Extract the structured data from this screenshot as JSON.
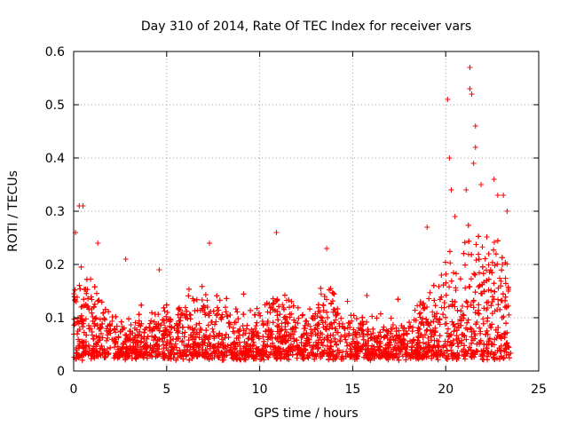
{
  "chart_data": {
    "type": "scatter",
    "title": "Day 310 of 2014, Rate Of TEC Index for receiver vars",
    "xlabel": "GPS time / hours",
    "ylabel": "ROTI / TECUs",
    "xlim": [
      0,
      25
    ],
    "ylim": [
      0,
      0.6
    ],
    "xticks": [
      "0",
      "5",
      "10",
      "15",
      "20",
      "25"
    ],
    "yticks": [
      "0",
      "0.1",
      "0.2",
      "0.3",
      "0.4",
      "0.5",
      "0.6"
    ],
    "grid": true,
    "marker": "+",
    "color": "#ff0000",
    "x_range_observed": [
      0,
      23.5
    ],
    "envelope": {
      "hours": [
        0,
        0.3,
        0.8,
        1.5,
        2.5,
        3.5,
        4.5,
        5.5,
        6.5,
        7.3,
        8,
        9,
        10,
        10.8,
        11.5,
        12.5,
        13.5,
        14.5,
        15.5,
        16.5,
        17.5,
        18.5,
        19.5,
        20.2,
        20.8,
        21.5,
        22.2,
        22.8,
        23.4
      ],
      "typical_max": [
        0.16,
        0.18,
        0.15,
        0.12,
        0.09,
        0.09,
        0.1,
        0.11,
        0.13,
        0.15,
        0.12,
        0.1,
        0.11,
        0.14,
        0.12,
        0.1,
        0.15,
        0.11,
        0.09,
        0.08,
        0.09,
        0.11,
        0.15,
        0.2,
        0.22,
        0.24,
        0.22,
        0.25,
        0.2
      ]
    },
    "notable_points": [
      {
        "x": 0.1,
        "y": 0.26
      },
      {
        "x": 0.3,
        "y": 0.31
      },
      {
        "x": 0.5,
        "y": 0.31
      },
      {
        "x": 1.3,
        "y": 0.24
      },
      {
        "x": 2.8,
        "y": 0.21
      },
      {
        "x": 4.6,
        "y": 0.19
      },
      {
        "x": 7.3,
        "y": 0.24
      },
      {
        "x": 10.9,
        "y": 0.26
      },
      {
        "x": 13.6,
        "y": 0.23
      },
      {
        "x": 19.0,
        "y": 0.27
      },
      {
        "x": 20.1,
        "y": 0.51
      },
      {
        "x": 20.2,
        "y": 0.4
      },
      {
        "x": 20.3,
        "y": 0.34
      },
      {
        "x": 20.5,
        "y": 0.29
      },
      {
        "x": 21.1,
        "y": 0.34
      },
      {
        "x": 21.3,
        "y": 0.57
      },
      {
        "x": 21.3,
        "y": 0.53
      },
      {
        "x": 21.4,
        "y": 0.52
      },
      {
        "x": 21.6,
        "y": 0.46
      },
      {
        "x": 21.6,
        "y": 0.42
      },
      {
        "x": 21.5,
        "y": 0.39
      },
      {
        "x": 21.9,
        "y": 0.35
      },
      {
        "x": 22.6,
        "y": 0.36
      },
      {
        "x": 22.8,
        "y": 0.33
      },
      {
        "x": 23.1,
        "y": 0.33
      },
      {
        "x": 23.3,
        "y": 0.3
      }
    ]
  }
}
